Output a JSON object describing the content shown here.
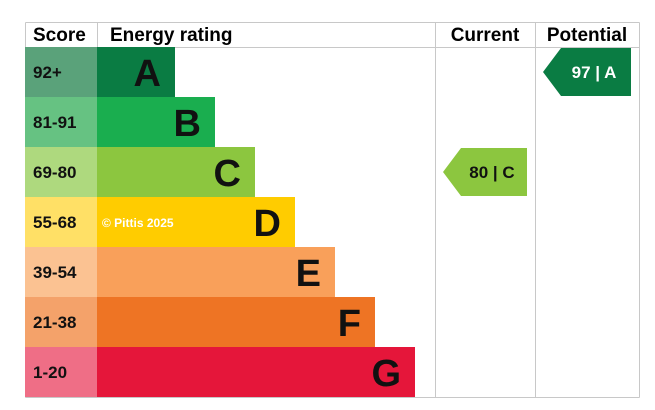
{
  "chart_data": {
    "type": "bar",
    "headers": {
      "score": "Score",
      "rating": "Energy rating",
      "current": "Current",
      "potential": "Potential"
    },
    "bands": [
      {
        "range": "92+",
        "letter": "A",
        "bar_color": "#0a7c43",
        "score_bg": "#5aa27a"
      },
      {
        "range": "81-91",
        "letter": "B",
        "bar_color": "#1aae4f",
        "score_bg": "#66c282"
      },
      {
        "range": "69-80",
        "letter": "C",
        "bar_color": "#8cc63f",
        "score_bg": "#aed97e"
      },
      {
        "range": "55-68",
        "letter": "D",
        "bar_color": "#ffcc00",
        "score_bg": "#ffe066"
      },
      {
        "range": "39-54",
        "letter": "E",
        "bar_color": "#f9a05a",
        "score_bg": "#fbc292"
      },
      {
        "range": "21-38",
        "letter": "F",
        "bar_color": "#ee7424",
        "score_bg": "#f4a26a"
      },
      {
        "range": "1-20",
        "letter": "G",
        "bar_color": "#e5163a",
        "score_bg": "#ef6e86"
      }
    ],
    "current": {
      "value": 80,
      "letter": "C",
      "label": "80 | C",
      "color": "#8cc63f",
      "text_color": "#111111"
    },
    "potential": {
      "value": 97,
      "letter": "A",
      "label": "97 | A",
      "color": "#0a7c43",
      "text_color": "#ffffff"
    },
    "watermark": "© Pittis 2025"
  }
}
